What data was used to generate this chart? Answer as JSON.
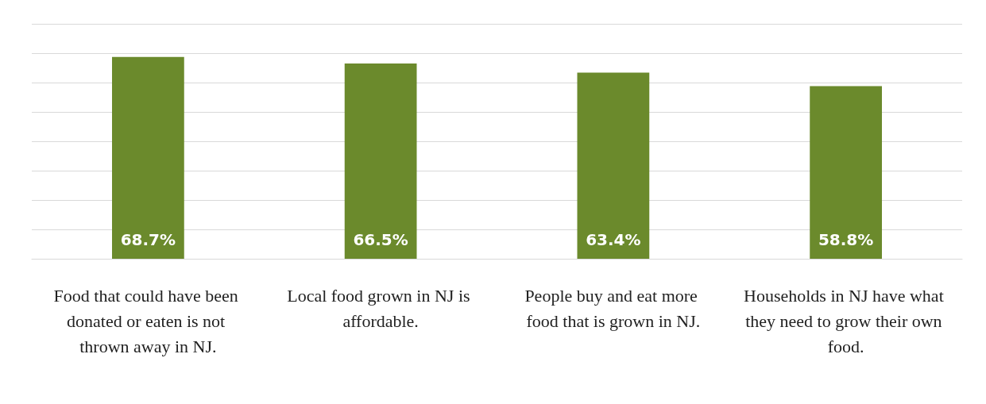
{
  "chart_data": {
    "type": "bar",
    "categories": [
      "Food that could have been donated or eaten is not thrown away in NJ.",
      "Local food grown in NJ is affordable.",
      "People buy and eat more food that is grown in NJ.",
      "Households in NJ have what they need to grow their own food."
    ],
    "values": [
      68.7,
      66.5,
      63.4,
      58.8
    ],
    "value_labels": [
      "68.7%",
      "66.5%",
      "63.4%",
      "58.8%"
    ],
    "color": "#6b8a2c",
    "ylim": [
      0,
      80
    ],
    "yticks": [
      0,
      10,
      20,
      30,
      40,
      50,
      60,
      70,
      80
    ],
    "grid": "y",
    "tick_labels": "x"
  }
}
